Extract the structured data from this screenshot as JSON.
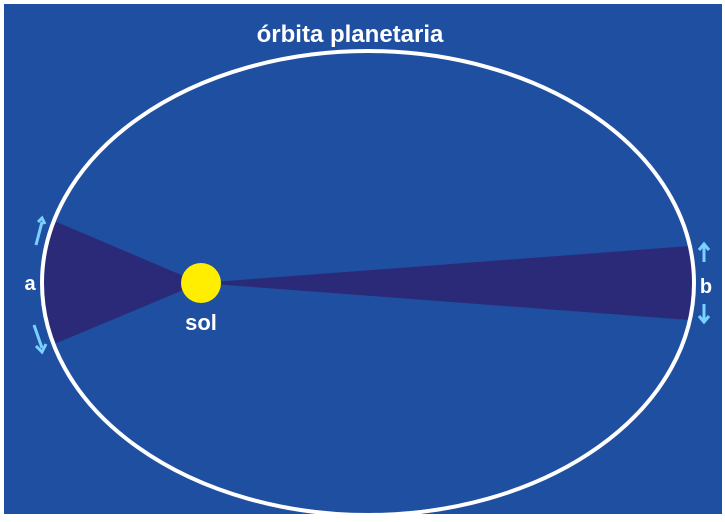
{
  "title": "órbita planetaria",
  "labels": {
    "sun": "sol",
    "a": "a",
    "b": "b"
  }
}
